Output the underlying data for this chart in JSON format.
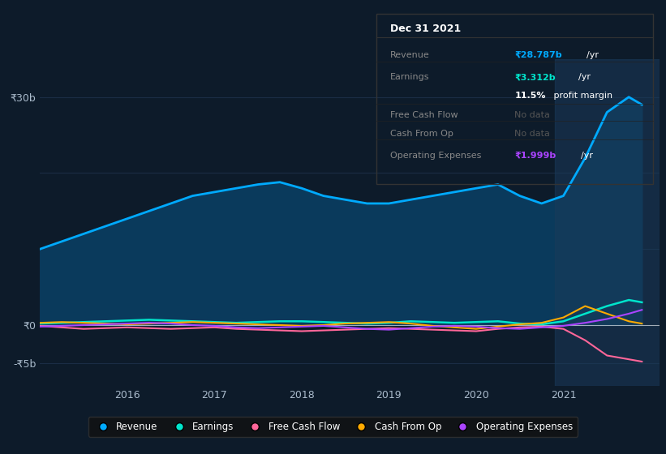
{
  "bg_color": "#0d1b2a",
  "plot_bg_color": "#0d1b2a",
  "colors": {
    "revenue": "#00aaff",
    "earnings": "#00e5cc",
    "free_cash_flow": "#ff6699",
    "cash_from_op": "#ffaa00",
    "operating_expenses": "#aa44ff",
    "revenue_fill": "#0a3a5c"
  },
  "legend": [
    {
      "label": "Revenue",
      "color": "#00aaff"
    },
    {
      "label": "Earnings",
      "color": "#00e5cc"
    },
    {
      "label": "Free Cash Flow",
      "color": "#ff6699"
    },
    {
      "label": "Cash From Op",
      "color": "#ffaa00"
    },
    {
      "label": "Operating Expenses",
      "color": "#aa44ff"
    }
  ],
  "x": [
    2015.0,
    2015.25,
    2015.5,
    2015.75,
    2016.0,
    2016.25,
    2016.5,
    2016.75,
    2017.0,
    2017.25,
    2017.5,
    2017.75,
    2018.0,
    2018.25,
    2018.5,
    2018.75,
    2019.0,
    2019.25,
    2019.5,
    2019.75,
    2020.0,
    2020.25,
    2020.5,
    2020.75,
    2021.0,
    2021.25,
    2021.5,
    2021.75,
    2021.9
  ],
  "revenue": [
    10000000000,
    11000000000,
    12000000000,
    13000000000,
    14000000000,
    15000000000,
    16000000000,
    17000000000,
    17500000000,
    18000000000,
    18500000000,
    18800000000,
    18000000000,
    17000000000,
    16500000000,
    16000000000,
    16000000000,
    16500000000,
    17000000000,
    17500000000,
    18000000000,
    18500000000,
    17000000000,
    16000000000,
    17000000000,
    22000000000,
    28000000000,
    30000000000,
    29000000000
  ],
  "earnings": [
    200000000,
    300000000,
    400000000,
    500000000,
    600000000,
    700000000,
    600000000,
    500000000,
    400000000,
    300000000,
    400000000,
    500000000,
    500000000,
    400000000,
    300000000,
    200000000,
    300000000,
    500000000,
    400000000,
    300000000,
    400000000,
    500000000,
    200000000,
    100000000,
    500000000,
    1500000000,
    2500000000,
    3300000000,
    3000000000
  ],
  "free_cash_flow": [
    -100000000,
    -300000000,
    -500000000,
    -400000000,
    -300000000,
    -400000000,
    -500000000,
    -400000000,
    -300000000,
    -500000000,
    -600000000,
    -700000000,
    -800000000,
    -700000000,
    -600000000,
    -500000000,
    -400000000,
    -500000000,
    -600000000,
    -700000000,
    -800000000,
    -500000000,
    -300000000,
    -200000000,
    -500000000,
    -2000000000,
    -4000000000,
    -4500000000,
    -4800000000
  ],
  "cash_from_op": [
    300000000,
    400000000,
    300000000,
    200000000,
    100000000,
    200000000,
    300000000,
    400000000,
    300000000,
    200000000,
    100000000,
    0,
    -100000000,
    0,
    200000000,
    300000000,
    400000000,
    200000000,
    -100000000,
    -300000000,
    -500000000,
    -200000000,
    100000000,
    300000000,
    1000000000,
    2500000000,
    1500000000,
    500000000,
    200000000
  ],
  "operating_expenses": [
    -200000000,
    -100000000,
    0,
    100000000,
    200000000,
    300000000,
    200000000,
    0,
    -100000000,
    -300000000,
    -400000000,
    -300000000,
    -200000000,
    -100000000,
    -300000000,
    -500000000,
    -600000000,
    -400000000,
    -200000000,
    -100000000,
    -200000000,
    -400000000,
    -500000000,
    -300000000,
    -100000000,
    300000000,
    800000000,
    1500000000,
    2000000000
  ],
  "tooltip_title": "Dec 31 2021",
  "tooltip_rows": [
    {
      "label": "Revenue",
      "value": "₹28.787b",
      "unit": "/yr",
      "value_color": "#00aaff",
      "label_color": "#888888"
    },
    {
      "label": "Earnings",
      "value": "₹3.312b",
      "unit": "/yr",
      "value_color": "#00e5cc",
      "label_color": "#888888"
    },
    {
      "label": "",
      "value": "11.5%",
      "unit": " profit margin",
      "value_color": "#ffffff",
      "label_color": "#888888"
    },
    {
      "label": "Free Cash Flow",
      "value": "No data",
      "unit": "",
      "value_color": "#555555",
      "label_color": "#888888"
    },
    {
      "label": "Cash From Op",
      "value": "No data",
      "unit": "",
      "value_color": "#555555",
      "label_color": "#888888"
    },
    {
      "label": "Operating Expenses",
      "value": "₹1.999b",
      "unit": "/yr",
      "value_color": "#aa44ff",
      "label_color": "#888888"
    }
  ]
}
